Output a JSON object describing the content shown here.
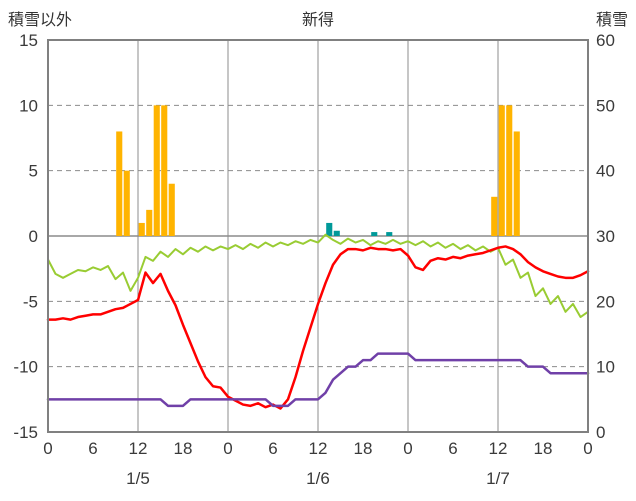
{
  "header": {
    "left_axis_title": "積雪以外",
    "station_title": "新得",
    "right_axis_title": "積雪"
  },
  "chart_data": {
    "type": "bar",
    "subtype": "mixed bar + line, dual y-axis, 3-day hourly weather chart",
    "title": "新得",
    "x": {
      "unit": "hour",
      "range": [
        0,
        72
      ],
      "tick_hours": [
        0,
        6,
        12,
        18,
        24,
        30,
        36,
        42,
        48,
        54,
        60,
        66,
        72
      ],
      "tick_labels": [
        "0",
        "6",
        "12",
        "18",
        "0",
        "6",
        "12",
        "18",
        "0",
        "6",
        "12",
        "18",
        "0"
      ],
      "gridline_hours": [
        12,
        24,
        36,
        48,
        60
      ],
      "day_labels": [
        {
          "label": "1/5",
          "hour": 12
        },
        {
          "label": "1/6",
          "hour": 36
        },
        {
          "label": "1/7",
          "hour": 60
        }
      ]
    },
    "y_left": {
      "title": "積雪以外",
      "range": [
        -15,
        15
      ],
      "ticks": [
        15,
        10,
        5,
        0,
        -5,
        -10,
        -15
      ],
      "gridlines_dashed": [
        10,
        5,
        -5,
        -10
      ],
      "zero_line": 0
    },
    "y_right": {
      "title": "積雪",
      "range": [
        0,
        60
      ],
      "ticks": [
        60,
        50,
        40,
        30,
        20,
        10,
        0
      ]
    },
    "series": [
      {
        "name": "orange-bars",
        "type": "bar",
        "axis": "left",
        "color": "#FFB400",
        "points": [
          {
            "hour": 9,
            "value": 8
          },
          {
            "hour": 10,
            "value": 5
          },
          {
            "hour": 12,
            "value": 1
          },
          {
            "hour": 13,
            "value": 2
          },
          {
            "hour": 14,
            "value": 10
          },
          {
            "hour": 15,
            "value": 10
          },
          {
            "hour": 16,
            "value": 4
          },
          {
            "hour": 59,
            "value": 3
          },
          {
            "hour": 60,
            "value": 10
          },
          {
            "hour": 61,
            "value": 10
          },
          {
            "hour": 62,
            "value": 8
          }
        ]
      },
      {
        "name": "teal-bars",
        "type": "bar",
        "axis": "left",
        "color": "#009999",
        "points": [
          {
            "hour": 37,
            "value": 1
          },
          {
            "hour": 38,
            "value": 0.4
          },
          {
            "hour": 43,
            "value": 0.3
          },
          {
            "hour": 45,
            "value": 0.3
          }
        ]
      },
      {
        "name": "green-line",
        "type": "line",
        "axis": "left",
        "color": "#99CC33",
        "width": 2,
        "values_by_hour": [
          -1.8,
          -2.9,
          -3.2,
          -2.9,
          -2.6,
          -2.7,
          -2.4,
          -2.6,
          -2.3,
          -3.3,
          -2.8,
          -4.2,
          -3.2,
          -1.6,
          -1.9,
          -1.2,
          -1.6,
          -1.0,
          -1.4,
          -0.9,
          -1.2,
          -0.8,
          -1.1,
          -0.8,
          -1.0,
          -0.7,
          -1.0,
          -0.6,
          -0.9,
          -0.5,
          -0.8,
          -0.5,
          -0.7,
          -0.4,
          -0.6,
          -0.3,
          -0.5,
          0.1,
          -0.3,
          -0.6,
          -0.2,
          -0.5,
          -0.3,
          -0.7,
          -0.4,
          -0.6,
          -0.3,
          -0.6,
          -0.4,
          -0.7,
          -0.4,
          -0.8,
          -0.5,
          -0.9,
          -0.6,
          -1.0,
          -0.7,
          -1.1,
          -0.8,
          -1.2,
          -0.9,
          -2.2,
          -1.8,
          -3.2,
          -2.8,
          -4.6,
          -4.0,
          -5.2,
          -4.6,
          -5.8,
          -5.2,
          -6.2,
          -5.8
        ]
      },
      {
        "name": "red-line",
        "type": "line",
        "axis": "left",
        "color": "#FF0000",
        "width": 2.5,
        "values_by_hour": [
          -6.4,
          -6.4,
          -6.3,
          -6.4,
          -6.2,
          -6.1,
          -6.0,
          -6.0,
          -5.8,
          -5.6,
          -5.5,
          -5.2,
          -4.9,
          -2.8,
          -3.6,
          -2.9,
          -4.2,
          -5.3,
          -6.8,
          -8.2,
          -9.6,
          -10.8,
          -11.5,
          -11.6,
          -12.3,
          -12.6,
          -12.9,
          -13.0,
          -12.8,
          -13.1,
          -12.9,
          -13.2,
          -12.5,
          -10.8,
          -8.8,
          -7.0,
          -5.2,
          -3.6,
          -2.2,
          -1.4,
          -1.0,
          -1.0,
          -1.1,
          -0.9,
          -1.0,
          -1.0,
          -1.1,
          -1.0,
          -1.5,
          -2.4,
          -2.6,
          -1.9,
          -1.7,
          -1.8,
          -1.6,
          -1.7,
          -1.5,
          -1.4,
          -1.3,
          -1.1,
          -0.9,
          -0.8,
          -1.0,
          -1.4,
          -2.0,
          -2.4,
          -2.7,
          -2.9,
          -3.1,
          -3.2,
          -3.2,
          -3.0,
          -2.7
        ]
      },
      {
        "name": "purple-line",
        "type": "line",
        "axis": "right",
        "color": "#7040A8",
        "width": 2.5,
        "values_by_hour": [
          5,
          5,
          5,
          5,
          5,
          5,
          5,
          5,
          5,
          5,
          5,
          5,
          5,
          5,
          5,
          5,
          4,
          4,
          4,
          5,
          5,
          5,
          5,
          5,
          5,
          5,
          5,
          5,
          5,
          5,
          4,
          4,
          4,
          5,
          5,
          5,
          5,
          6,
          8,
          9,
          10,
          10,
          11,
          11,
          12,
          12,
          12,
          12,
          12,
          11,
          11,
          11,
          11,
          11,
          11,
          11,
          11,
          11,
          11,
          11,
          11,
          11,
          11,
          11,
          10,
          10,
          10,
          9,
          9,
          9,
          9,
          9,
          9
        ]
      }
    ],
    "colors": {
      "grid": "#8C8C8C",
      "border": "#808080",
      "text": "#3A3A3A",
      "background": "#FFFFFF"
    },
    "legend": "none"
  }
}
